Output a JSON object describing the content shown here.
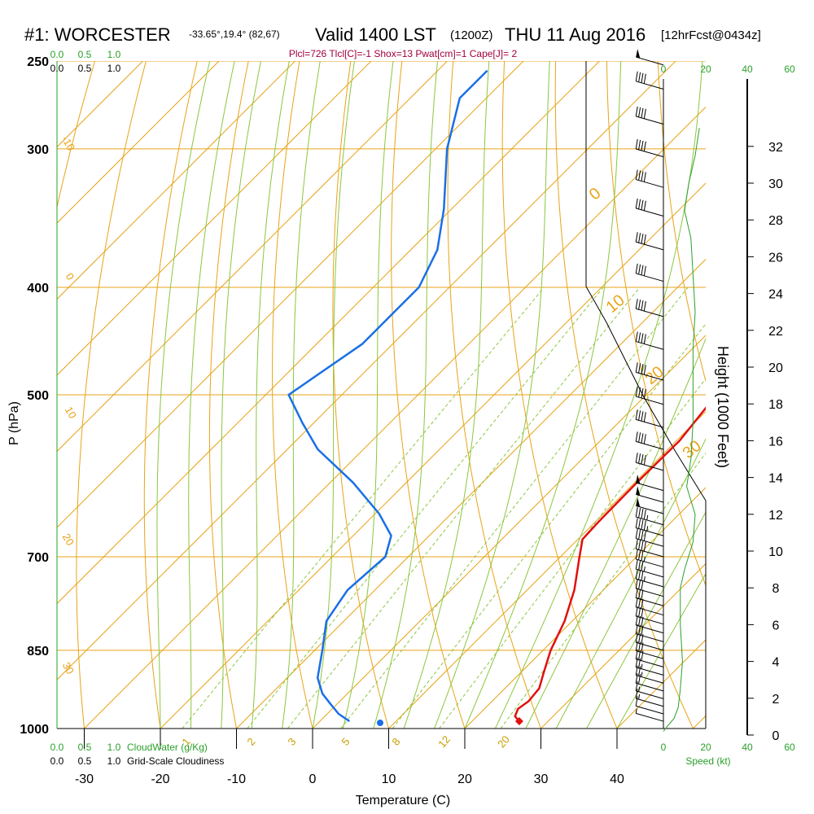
{
  "header": {
    "station": "#1: WORCESTER",
    "coords": "-33.65°,19.4° (82,67)",
    "valid": "Valid 1400 LST",
    "zulu": "(1200Z)",
    "date": "THU 11 Aug 2016",
    "forecast": "[12hrFcst@0434z]",
    "indices": "Plcl=726 Tlcl[C]=-1 Shox=13 Pwat[cm]=1 Cape[J]= 2"
  },
  "colors": {
    "temperature": "#e01010",
    "dewpoint": "#1a6fe6",
    "isotherm": "#e8a317",
    "dry_adiabat": "#e8a317",
    "moist_adiabat": "#8cc63f",
    "mixing_ratio": "#8cc63f",
    "cloud": "#2aa02a",
    "text": "#000000",
    "index_text": "#a0003c"
  },
  "chart_data": {
    "type": "line",
    "title": "#1: WORCESTER Skew-T sounding, Valid 1400 LST (1200Z) THU 11 Aug 2016",
    "xlabel": "Temperature (C)",
    "ylabel": "P (hPa)",
    "right_axis_label": "Height (1000 Feet)",
    "x_ticks": [
      -30,
      -20,
      -10,
      0,
      10,
      20,
      30,
      40
    ],
    "pressure_levels": [
      1000,
      850,
      700,
      500,
      400,
      300,
      250
    ],
    "pressure_labels": [
      "1000",
      "850",
      "700",
      "500",
      "400",
      "300",
      "250"
    ],
    "height_ticks": [
      0,
      2,
      4,
      6,
      8,
      10,
      12,
      14,
      16,
      18,
      20,
      22,
      24,
      26,
      28,
      30,
      32
    ],
    "series": [
      {
        "name": "Temperature",
        "points": [
          {
            "p": 985,
            "t": 26.2
          },
          {
            "p": 975,
            "t": 25.0
          },
          {
            "p": 960,
            "t": 24.4
          },
          {
            "p": 945,
            "t": 24.8
          },
          {
            "p": 920,
            "t": 24.5
          },
          {
            "p": 890,
            "t": 23.0
          },
          {
            "p": 850,
            "t": 21.0
          },
          {
            "p": 800,
            "t": 19.0
          },
          {
            "p": 750,
            "t": 16.2
          },
          {
            "p": 700,
            "t": 12.5
          },
          {
            "p": 675,
            "t": 10.6
          },
          {
            "p": 650,
            "t": 10.4
          },
          {
            "p": 600,
            "t": 10.3
          },
          {
            "p": 550,
            "t": 10.4
          },
          {
            "p": 500,
            "t": 9.2
          },
          {
            "p": 450,
            "t": 5.3
          },
          {
            "p": 400,
            "t": -0.2
          },
          {
            "p": 350,
            "t": -6.7
          },
          {
            "p": 300,
            "t": -14.0
          },
          {
            "p": 260,
            "t": -20.5
          }
        ]
      },
      {
        "name": "Dewpoint",
        "points": [
          {
            "p": 985,
            "t": 3.9
          },
          {
            "p": 970,
            "t": 1.5
          },
          {
            "p": 950,
            "t": -0.9
          },
          {
            "p": 930,
            "t": -3.3
          },
          {
            "p": 900,
            "t": -6.0
          },
          {
            "p": 850,
            "t": -9.0
          },
          {
            "p": 800,
            "t": -12.3
          },
          {
            "p": 750,
            "t": -13.6
          },
          {
            "p": 700,
            "t": -13.0
          },
          {
            "p": 670,
            "t": -15.0
          },
          {
            "p": 640,
            "t": -19.5
          },
          {
            "p": 600,
            "t": -27.0
          },
          {
            "p": 560,
            "t": -36.0
          },
          {
            "p": 530,
            "t": -41.5
          },
          {
            "p": 500,
            "t": -47.0
          },
          {
            "p": 450,
            "t": -44.0
          },
          {
            "p": 400,
            "t": -44.0
          },
          {
            "p": 370,
            "t": -46.5
          },
          {
            "p": 340,
            "t": -51.0
          },
          {
            "p": 300,
            "t": -58.5
          },
          {
            "p": 270,
            "t": -63.5
          },
          {
            "p": 255,
            "t": -63.5
          }
        ]
      }
    ],
    "surface_dewpoint": {
      "p": 985,
      "t": 3.9
    },
    "surface_temperature": {
      "p": 985,
      "t": 26.2
    },
    "isotherm_labels": [
      "-10",
      "0",
      "10",
      "20",
      "30",
      "0",
      "10",
      "20",
      "30"
    ],
    "mixing_ratio_labels": [
      "1",
      "2",
      "3",
      "5",
      "8",
      "12",
      "20"
    ],
    "cloud_axis_labels": [
      "0.0",
      "0.5",
      "1.0"
    ],
    "cloudwater_label": "CloudWater (g/Kg)",
    "cloudiness_label": "Grid-Scale Cloudiness",
    "wind_speed_ticks": [
      "0",
      "20",
      "40",
      "60"
    ],
    "wind_speed_label": "Speed (kt)",
    "wind_speed_profile": [
      {
        "ft": 0.2,
        "kt": 0
      },
      {
        "ft": 0.5,
        "kt": 2
      },
      {
        "ft": 0.9,
        "kt": 5
      },
      {
        "ft": 1.5,
        "kt": 7
      },
      {
        "ft": 2.5,
        "kt": 8
      },
      {
        "ft": 4,
        "kt": 9
      },
      {
        "ft": 6,
        "kt": 8
      },
      {
        "ft": 8,
        "kt": 8
      },
      {
        "ft": 9,
        "kt": 10
      },
      {
        "ft": 10.5,
        "kt": 14
      },
      {
        "ft": 12,
        "kt": 15
      },
      {
        "ft": 13.5,
        "kt": 11
      },
      {
        "ft": 15,
        "kt": 13
      },
      {
        "ft": 17,
        "kt": 14
      },
      {
        "ft": 19,
        "kt": 14
      },
      {
        "ft": 21,
        "kt": 14
      },
      {
        "ft": 23,
        "kt": 15
      },
      {
        "ft": 25,
        "kt": 14
      },
      {
        "ft": 27,
        "kt": 13
      },
      {
        "ft": 28.5,
        "kt": 10
      },
      {
        "ft": 30,
        "kt": 12
      },
      {
        "ft": 31.5,
        "kt": 15
      },
      {
        "ft": 33,
        "kt": 17
      }
    ],
    "wind_barbs": [
      {
        "p": 985,
        "kt": 5
      },
      {
        "p": 970,
        "kt": 10
      },
      {
        "p": 955,
        "kt": 15
      },
      {
        "p": 940,
        "kt": 15
      },
      {
        "p": 925,
        "kt": 20
      },
      {
        "p": 910,
        "kt": 25
      },
      {
        "p": 895,
        "kt": 25
      },
      {
        "p": 880,
        "kt": 30
      },
      {
        "p": 865,
        "kt": 30
      },
      {
        "p": 850,
        "kt": 30
      },
      {
        "p": 835,
        "kt": 30
      },
      {
        "p": 820,
        "kt": 30
      },
      {
        "p": 805,
        "kt": 30
      },
      {
        "p": 790,
        "kt": 30
      },
      {
        "p": 775,
        "kt": 30
      },
      {
        "p": 760,
        "kt": 30
      },
      {
        "p": 745,
        "kt": 35
      },
      {
        "p": 730,
        "kt": 35
      },
      {
        "p": 715,
        "kt": 35
      },
      {
        "p": 700,
        "kt": 40
      },
      {
        "p": 685,
        "kt": 40
      },
      {
        "p": 670,
        "kt": 45
      },
      {
        "p": 655,
        "kt": 45
      },
      {
        "p": 640,
        "kt": 50
      },
      {
        "p": 625,
        "kt": 50
      },
      {
        "p": 610,
        "kt": 50
      },
      {
        "p": 585,
        "kt": 40
      },
      {
        "p": 560,
        "kt": 40
      },
      {
        "p": 535,
        "kt": 40
      },
      {
        "p": 510,
        "kt": 40
      },
      {
        "p": 485,
        "kt": 40
      },
      {
        "p": 455,
        "kt": 40
      },
      {
        "p": 425,
        "kt": 40
      },
      {
        "p": 395,
        "kt": 40
      },
      {
        "p": 370,
        "kt": 40
      },
      {
        "p": 345,
        "kt": 40
      },
      {
        "p": 325,
        "kt": 40
      },
      {
        "p": 305,
        "kt": 40
      },
      {
        "p": 285,
        "kt": 40
      },
      {
        "p": 265,
        "kt": 40
      },
      {
        "p": 252,
        "kt": 50
      }
    ]
  }
}
